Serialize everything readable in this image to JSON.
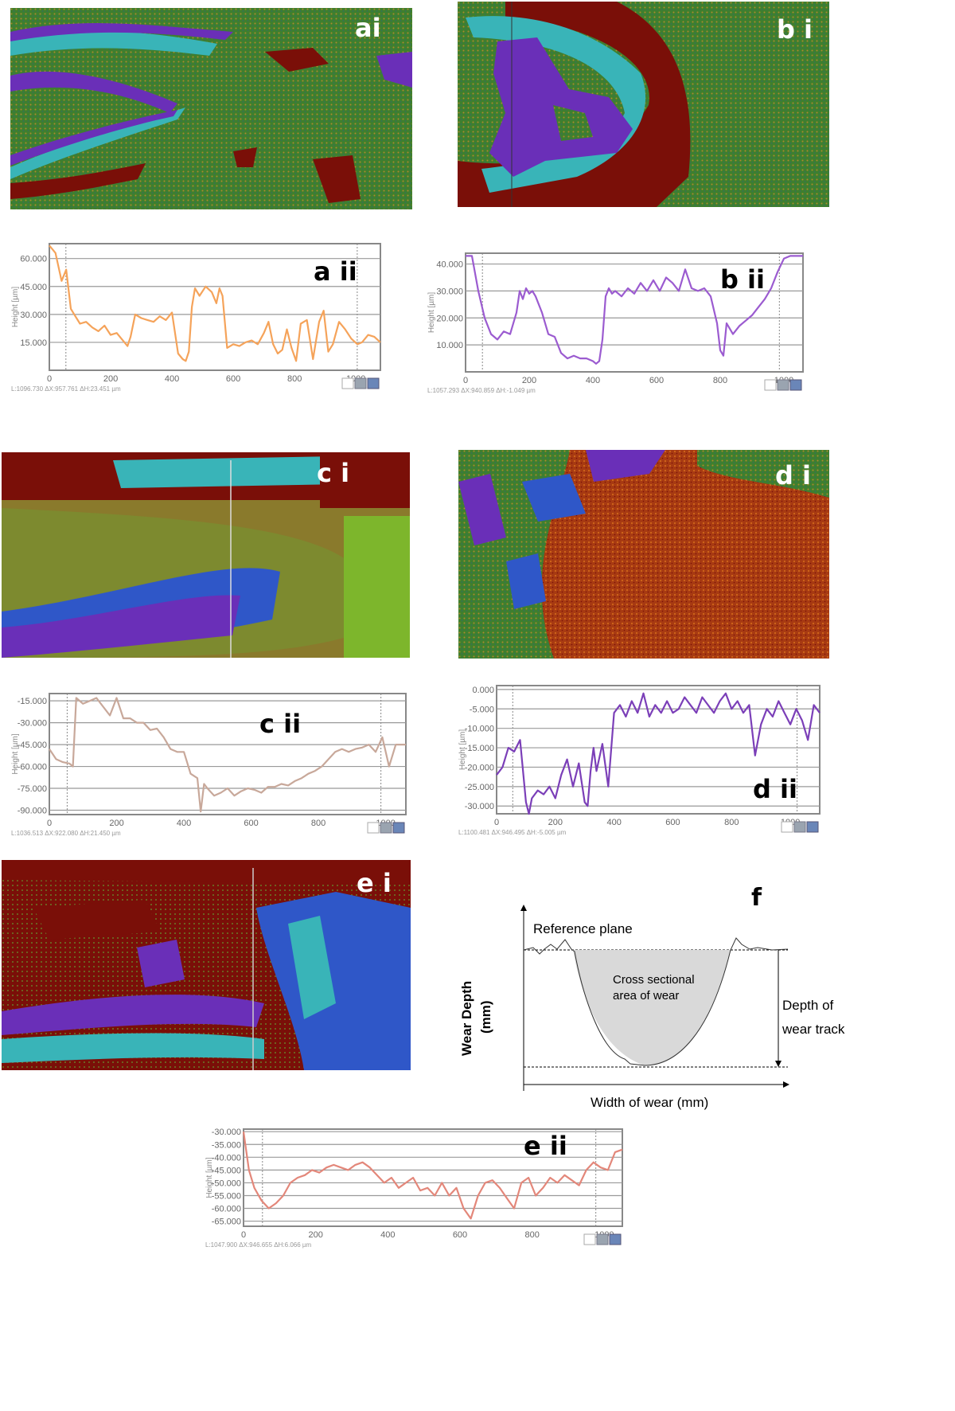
{
  "panels": {
    "ai": {
      "label": "ai"
    },
    "bi": {
      "label": "b i"
    },
    "ci": {
      "label": "c i"
    },
    "di": {
      "label": "d i"
    },
    "ei": {
      "label": "e i"
    },
    "f": {
      "label": "f"
    }
  },
  "colors": {
    "a_line": "#f5a35a",
    "b_line": "#9b5bd0",
    "c_line": "#c8a89a",
    "d_line": "#7b3fb8",
    "e_line": "#e3877a",
    "map_green": "#3f7f2e",
    "map_purple": "#6a2fb8",
    "map_blue": "#2f57c8",
    "map_cyan": "#39b4b8",
    "map_maroon": "#7a0f08",
    "map_orange": "#c48a22"
  },
  "chart_data": [
    {
      "id": "a-ii",
      "type": "line",
      "label": "a ii",
      "ylabel": "Height [µm]",
      "yticks": [
        "60.000",
        "45.000",
        "30.000",
        "15.000"
      ],
      "ytick_values": [
        60,
        45,
        30,
        15
      ],
      "xticks": [
        "0",
        "200",
        "400",
        "600",
        "800",
        "1000"
      ],
      "xtick_values": [
        0,
        200,
        400,
        600,
        800,
        1000
      ],
      "xlim": [
        0,
        1080
      ],
      "ylim": [
        0,
        68
      ],
      "footer": "L:1096.730   ΔX:957.761   ΔH:23.451   µm",
      "series": [
        {
          "x": [
            0,
            20,
            40,
            55,
            70,
            85,
            100,
            120,
            140,
            160,
            180,
            200,
            220,
            240,
            255,
            265,
            280,
            300,
            320,
            340,
            360,
            380,
            400,
            420,
            435,
            445,
            455,
            465,
            475,
            490,
            510,
            530,
            545,
            555,
            565,
            580,
            600,
            620,
            640,
            660,
            680,
            700,
            715,
            730,
            745,
            760,
            775,
            790,
            805,
            820,
            840,
            860,
            880,
            895,
            910,
            925,
            945,
            965,
            985,
            1005,
            1020,
            1040,
            1060,
            1080
          ],
          "y": [
            67,
            63,
            48,
            54,
            33,
            29,
            25,
            26,
            23,
            21,
            24,
            19,
            20,
            16,
            13,
            18,
            30,
            28,
            27,
            26,
            29,
            27,
            31,
            9,
            6,
            5,
            10,
            34,
            44,
            40,
            45,
            42,
            36,
            44,
            40,
            12,
            14,
            13,
            15,
            16,
            14,
            20,
            26,
            14,
            9,
            11,
            22,
            12,
            5,
            25,
            27,
            6,
            26,
            32,
            10,
            14,
            26,
            22,
            17,
            14,
            15,
            19,
            18,
            15
          ]
        }
      ]
    },
    {
      "id": "b-ii",
      "type": "line",
      "label": "b ii",
      "ylabel": "Height [µm]",
      "yticks": [
        "40.000",
        "30.000",
        "20.000",
        "10.000"
      ],
      "ytick_values": [
        40,
        30,
        20,
        10
      ],
      "xticks": [
        "0",
        "200",
        "400",
        "600",
        "800",
        "1000"
      ],
      "xtick_values": [
        0,
        200,
        400,
        600,
        800,
        1000
      ],
      "xlim": [
        0,
        1060
      ],
      "ylim": [
        0,
        44
      ],
      "footer": "L:1057.293   ΔX:940.859   ΔH:-1.049   µm",
      "series": [
        {
          "x": [
            0,
            20,
            40,
            60,
            80,
            100,
            120,
            140,
            160,
            170,
            180,
            190,
            200,
            210,
            220,
            240,
            260,
            280,
            300,
            320,
            340,
            360,
            380,
            400,
            410,
            420,
            430,
            440,
            450,
            460,
            470,
            490,
            510,
            530,
            550,
            570,
            590,
            610,
            630,
            650,
            670,
            690,
            710,
            730,
            750,
            770,
            790,
            800,
            810,
            820,
            840,
            860,
            880,
            900,
            920,
            940,
            960,
            980,
            1000,
            1020,
            1040,
            1060
          ],
          "y": [
            43,
            43,
            30,
            20,
            14,
            12,
            15,
            14,
            22,
            30,
            27,
            31,
            29,
            30,
            28,
            22,
            14,
            13,
            7,
            5,
            6,
            5,
            5,
            4,
            3,
            4,
            12,
            28,
            31,
            29,
            30,
            28,
            31,
            29,
            33,
            30,
            34,
            30,
            35,
            33,
            30,
            38,
            31,
            30,
            31,
            28,
            18,
            8,
            6,
            18,
            14,
            17,
            19,
            21,
            24,
            27,
            31,
            37,
            42,
            43,
            43,
            43
          ]
        }
      ]
    },
    {
      "id": "c-ii",
      "type": "line",
      "label": "c ii",
      "ylabel": "Height [µm]",
      "yticks": [
        "-15.000",
        "-30.000",
        "-45.000",
        "-60.000",
        "-75.000",
        "-90.000"
      ],
      "ytick_values": [
        -15,
        -30,
        -45,
        -60,
        -75,
        -90
      ],
      "xticks": [
        "0",
        "200",
        "400",
        "600",
        "800",
        "1000"
      ],
      "xtick_values": [
        0,
        200,
        400,
        600,
        800,
        1000
      ],
      "xlim": [
        0,
        1060
      ],
      "ylim": [
        -93,
        -10
      ],
      "footer": "L:1036.513   ΔX:922.080   ΔH:21.450   µm",
      "series": [
        {
          "x": [
            0,
            20,
            40,
            60,
            70,
            80,
            100,
            120,
            140,
            160,
            180,
            200,
            220,
            240,
            260,
            280,
            300,
            320,
            340,
            360,
            380,
            400,
            420,
            440,
            450,
            460,
            470,
            490,
            510,
            530,
            550,
            570,
            590,
            610,
            630,
            650,
            670,
            690,
            710,
            730,
            750,
            770,
            790,
            810,
            830,
            850,
            870,
            890,
            910,
            930,
            950,
            970,
            990,
            1010,
            1030,
            1060
          ],
          "y": [
            -48,
            -55,
            -57,
            -58,
            -60,
            -13,
            -17,
            -15,
            -13,
            -19,
            -25,
            -13,
            -27,
            -27,
            -30,
            -30,
            -35,
            -34,
            -40,
            -48,
            -50,
            -50,
            -65,
            -68,
            -91,
            -72,
            -75,
            -80,
            -78,
            -75,
            -80,
            -77,
            -75,
            -76,
            -78,
            -74,
            -74,
            -72,
            -73,
            -70,
            -68,
            -65,
            -63,
            -60,
            -55,
            -50,
            -48,
            -50,
            -48,
            -47,
            -45,
            -50,
            -40,
            -60,
            -45,
            -45
          ]
        }
      ]
    },
    {
      "id": "d-ii",
      "type": "line",
      "label": "d ii",
      "ylabel": "Height [µm]",
      "yticks": [
        "0.000",
        "-5.000",
        "-10.000",
        "-15.000",
        "-20.000",
        "-25.000",
        "-30.000"
      ],
      "ytick_values": [
        0,
        -5,
        -10,
        -15,
        -20,
        -25,
        -30
      ],
      "xticks": [
        "0",
        "200",
        "400",
        "600",
        "800",
        "1000"
      ],
      "xtick_values": [
        0,
        200,
        400,
        600,
        800,
        1000
      ],
      "xlim": [
        0,
        1100
      ],
      "ylim": [
        -32,
        1
      ],
      "footer": "L:1100.481   ΔX:946.495   ΔH:-5.005   µm",
      "series": [
        {
          "x": [
            0,
            20,
            40,
            60,
            80,
            100,
            110,
            120,
            140,
            160,
            180,
            200,
            220,
            240,
            260,
            280,
            300,
            310,
            320,
            330,
            340,
            360,
            380,
            400,
            420,
            440,
            460,
            480,
            500,
            520,
            540,
            560,
            580,
            600,
            620,
            640,
            660,
            680,
            700,
            720,
            740,
            760,
            780,
            800,
            820,
            840,
            860,
            880,
            900,
            920,
            940,
            960,
            980,
            1000,
            1020,
            1040,
            1060,
            1080,
            1100
          ],
          "y": [
            -22,
            -20,
            -15,
            -16,
            -13,
            -29,
            -32,
            -28,
            -26,
            -27,
            -25,
            -28,
            -22,
            -18,
            -25,
            -19,
            -29,
            -30,
            -21,
            -15,
            -21,
            -14,
            -25,
            -6,
            -4,
            -7,
            -3,
            -6,
            -1,
            -7,
            -4,
            -6,
            -3,
            -6,
            -5,
            -2,
            -4,
            -6,
            -2,
            -4,
            -6,
            -3,
            -1,
            -5,
            -3,
            -6,
            -4,
            -17,
            -9,
            -5,
            -7,
            -3,
            -6,
            -9,
            -5,
            -8,
            -13,
            -4,
            -6
          ]
        }
      ]
    },
    {
      "id": "e-ii",
      "type": "line",
      "label": "e ii",
      "ylabel": "Height [µm]",
      "yticks": [
        "-30.000",
        "-35.000",
        "-40.000",
        "-45.000",
        "-50.000",
        "-55.000",
        "-60.000",
        "-65.000"
      ],
      "ytick_values": [
        -30,
        -35,
        -40,
        -45,
        -50,
        -55,
        -60,
        -65
      ],
      "xticks": [
        "0",
        "200",
        "400",
        "600",
        "800",
        "1000"
      ],
      "xtick_values": [
        0,
        200,
        400,
        600,
        800,
        1000
      ],
      "xlim": [
        0,
        1050
      ],
      "ylim": [
        -67,
        -29
      ],
      "footer": "L:1047.900   ΔX:946.655   ΔH:6.066   µm",
      "series": [
        {
          "x": [
            0,
            15,
            30,
            50,
            70,
            90,
            110,
            130,
            150,
            170,
            190,
            210,
            230,
            250,
            270,
            290,
            310,
            330,
            350,
            370,
            390,
            410,
            430,
            450,
            470,
            490,
            510,
            530,
            550,
            570,
            590,
            610,
            630,
            650,
            670,
            690,
            710,
            730,
            750,
            770,
            790,
            810,
            830,
            850,
            870,
            890,
            910,
            930,
            950,
            970,
            990,
            1010,
            1030,
            1050
          ],
          "y": [
            -30,
            -45,
            -52,
            -57,
            -60,
            -58,
            -55,
            -50,
            -48,
            -47,
            -45,
            -46,
            -44,
            -43,
            -44,
            -45,
            -43,
            -42,
            -44,
            -47,
            -50,
            -48,
            -52,
            -50,
            -48,
            -53,
            -52,
            -55,
            -50,
            -55,
            -52,
            -60,
            -64,
            -55,
            -50,
            -49,
            -52,
            -56,
            -60,
            -50,
            -48,
            -55,
            -52,
            -48,
            -50,
            -47,
            -49,
            -51,
            -45,
            -42,
            -44,
            -45,
            -38,
            -37
          ]
        }
      ]
    }
  ],
  "schematic": {
    "label": "f",
    "reference_plane": "Reference plane",
    "area_line1": "Cross sectional",
    "area_line2": "area of wear",
    "depth_line1": "Depth of",
    "depth_line2": "wear track",
    "ylabel_line1": "Wear Depth",
    "ylabel_line2": "(mm)",
    "xlabel": "Width of wear (mm)"
  }
}
